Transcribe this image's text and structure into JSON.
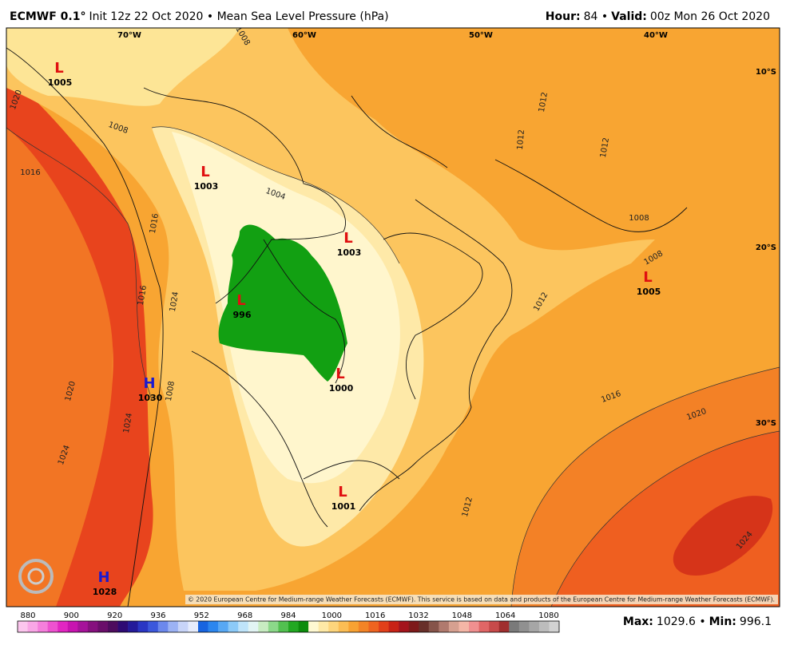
{
  "header": {
    "left": [
      {
        "text": "ECMWF 0.1°",
        "bold": true
      },
      {
        "text": "Init 12z 22 Oct 2020 • Mean Sea Level Pressure (hPa)",
        "bold": false
      }
    ],
    "right": [
      {
        "text": "Hour:",
        "bold": true
      },
      {
        "text": "84 •",
        "bold": false
      },
      {
        "text": "Valid:",
        "bold": true
      },
      {
        "text": "00z Mon 26 Oct 2020",
        "bold": false
      }
    ]
  },
  "map": {
    "longitudes": [
      "70°W",
      "60°W",
      "50°W",
      "40°W"
    ],
    "latitudes": [
      "10°S",
      "20°S",
      "30°S"
    ],
    "centers": [
      {
        "symbol": "L",
        "value": 1005
      },
      {
        "symbol": "L",
        "value": 1003
      },
      {
        "symbol": "L",
        "value": 1003
      },
      {
        "symbol": "L",
        "value": 996
      },
      {
        "symbol": "L",
        "value": 1000
      },
      {
        "symbol": "L",
        "value": 1001
      },
      {
        "symbol": "L",
        "value": 1005
      },
      {
        "symbol": "H",
        "value": 1030
      },
      {
        "symbol": "H",
        "value": 1028
      }
    ],
    "contour_labels": [
      1008,
      1020,
      1008,
      1016,
      1004,
      1016,
      1016,
      1024,
      1020,
      1024,
      1024,
      1008,
      1012,
      1012,
      1012,
      1008,
      1008,
      1012,
      1016,
      1020,
      1012,
      1024
    ],
    "copyright": "© 2020 European Centre for Medium-range Weather Forecasts (ECMWF). This service is based on data and products of the European Centre for Medium-range Weather Forecasts (ECMWF)."
  },
  "colorbar": {
    "ticks": [
      880,
      900,
      920,
      936,
      952,
      968,
      984,
      1000,
      1016,
      1032,
      1048,
      1064,
      1080
    ]
  },
  "footer": [
    {
      "text": "Max:",
      "bold": true
    },
    {
      "text": "1029.6 •",
      "bold": false
    },
    {
      "text": "Min:",
      "bold": true
    },
    {
      "text": "996.1",
      "bold": false
    }
  ]
}
